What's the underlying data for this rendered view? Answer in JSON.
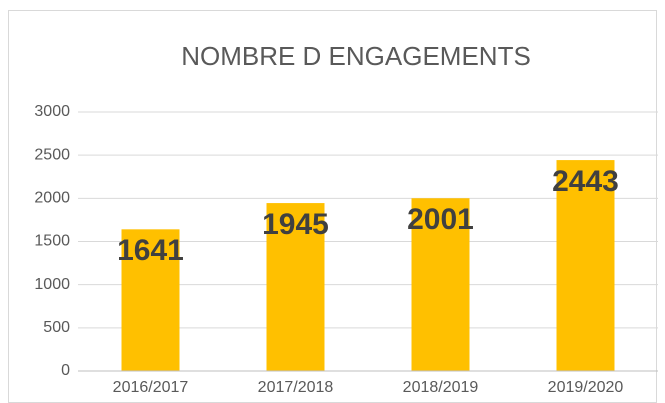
{
  "chart_data": {
    "type": "bar",
    "title": "NOMBRE D ENGAGEMENTS",
    "categories": [
      "2016/2017",
      "2017/2018",
      "2018/2019",
      "2019/2020"
    ],
    "values": [
      1641,
      1945,
      2001,
      2443
    ],
    "color": "#ffc000",
    "ylim": [
      0,
      3000
    ],
    "yticks": [
      0,
      500,
      1000,
      1500,
      2000,
      2500,
      3000
    ],
    "grid": true
  }
}
